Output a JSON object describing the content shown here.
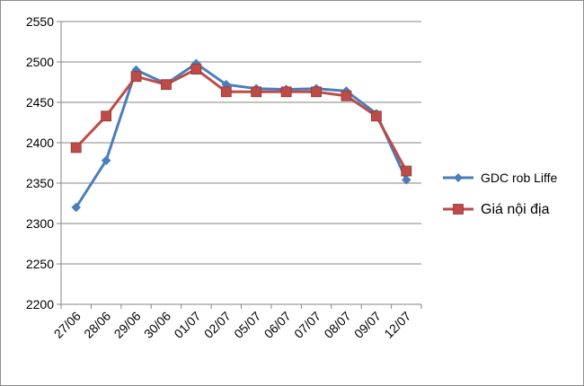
{
  "chart_data": {
    "type": "line",
    "title": "",
    "xlabel": "",
    "ylabel": "",
    "categories": [
      "27/06",
      "28/06",
      "29/06",
      "30/06",
      "01/07",
      "02/07",
      "05/07",
      "06/07",
      "07/07",
      "08/07",
      "09/07",
      "12/07"
    ],
    "ylim": [
      2200,
      2550
    ],
    "yticks": [
      2200,
      2250,
      2300,
      2350,
      2400,
      2450,
      2500,
      2550
    ],
    "grid": true,
    "legend_position": "right",
    "series": [
      {
        "name": "GDC rob Liffe",
        "color": "#4a7ebb",
        "marker": "diamond",
        "values": [
          2320,
          2378,
          2490,
          2473,
          2498,
          2472,
          2467,
          2466,
          2467,
          2464,
          2436,
          2354
        ]
      },
      {
        "name": "Giá nội địa",
        "color": "#be4b48",
        "marker": "square",
        "values": [
          2394,
          2433,
          2482,
          2472,
          2491,
          2463,
          2463,
          2463,
          2463,
          2458,
          2433,
          2365
        ]
      }
    ]
  }
}
